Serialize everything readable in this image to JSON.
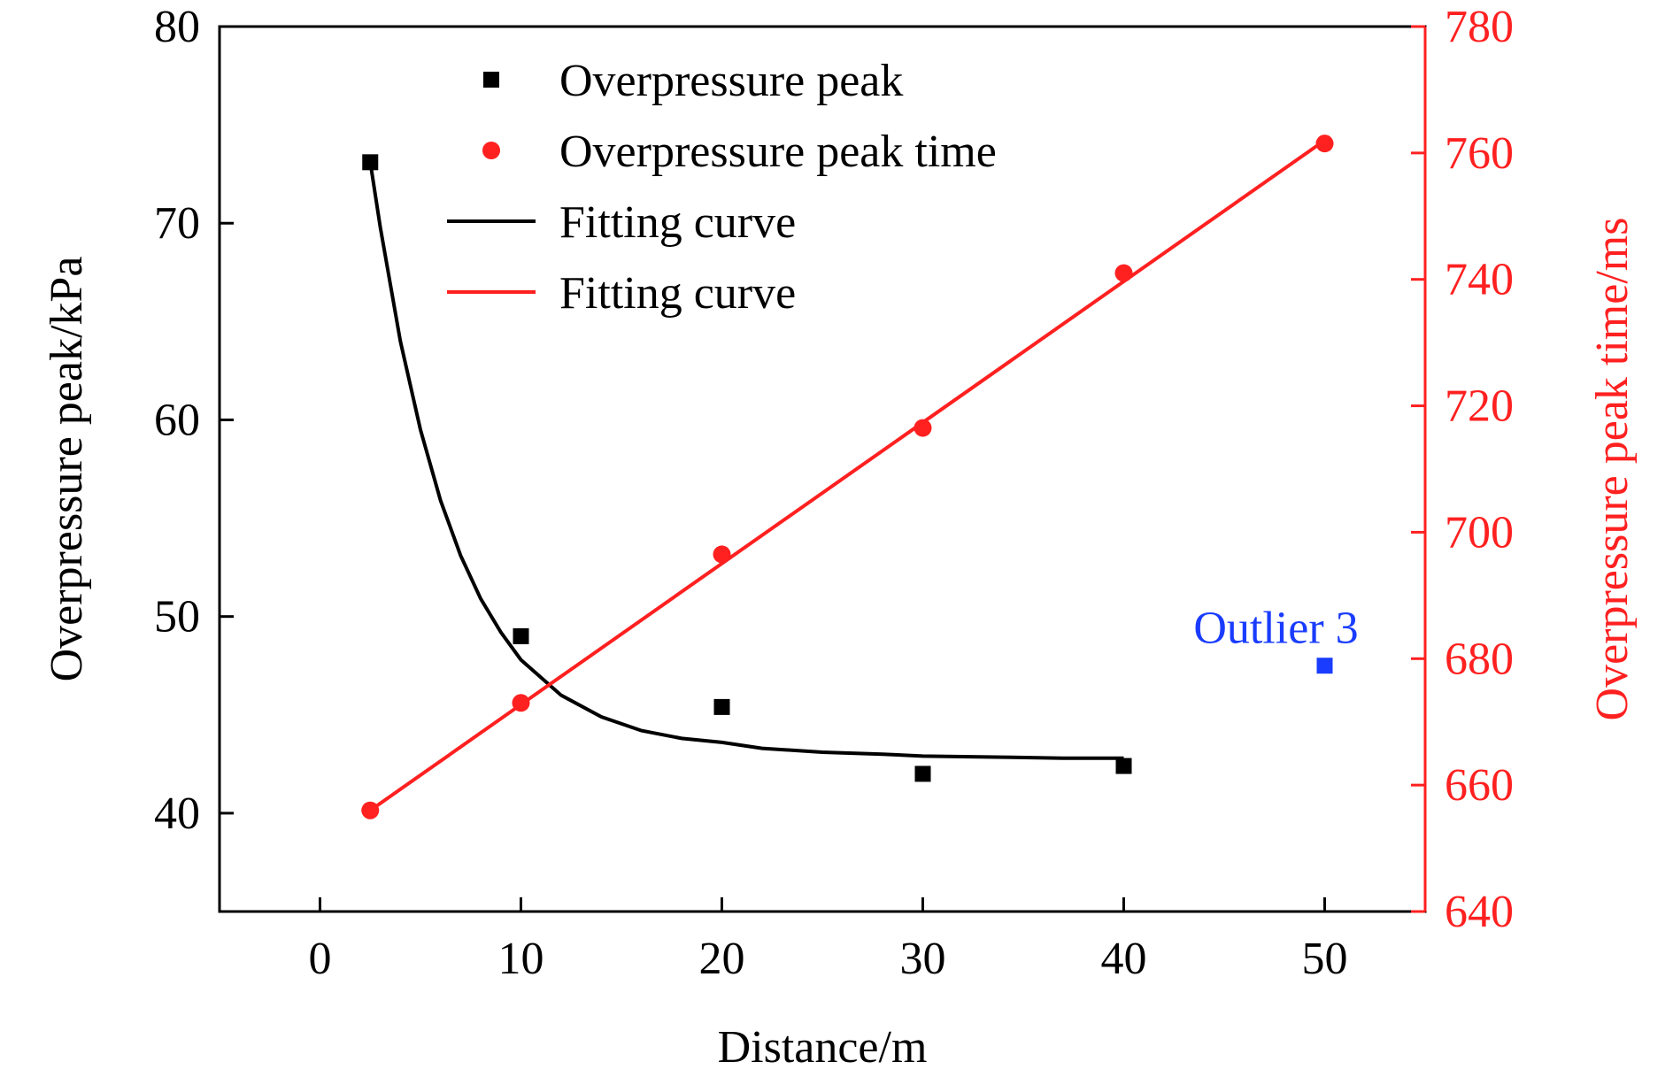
{
  "chart_data": {
    "type": "scatter",
    "xlabel": "Distance/m",
    "ylabel_left": "Overpressure peak/kPa",
    "ylabel_right": "Overpressure peak time/ms",
    "xlim": [
      -5,
      55
    ],
    "ylim_left": [
      35,
      80
    ],
    "ylim_right": [
      640,
      780
    ],
    "x_ticks": [
      0,
      10,
      20,
      30,
      40,
      50
    ],
    "y_ticks_left": [
      40,
      50,
      60,
      70,
      80
    ],
    "y_ticks_right": [
      640,
      660,
      680,
      700,
      720,
      740,
      760,
      780
    ],
    "legend_position": "top-left",
    "colors": {
      "left_axis": "#000000",
      "right_axis": "#ff2020",
      "peak": "#000000",
      "time": "#ff2020",
      "outlier": "#1a3cff"
    },
    "series": [
      {
        "name": "Overpressure peak",
        "axis": "left",
        "marker": "square",
        "color": "#000000",
        "x": [
          2.5,
          10,
          20,
          30,
          40
        ],
        "y": [
          73.1,
          49.0,
          45.4,
          42.0,
          42.4
        ]
      },
      {
        "name": "Overpressure peak time",
        "axis": "right",
        "marker": "circle",
        "color": "#ff2020",
        "x": [
          2.5,
          10,
          20,
          30,
          40,
          50
        ],
        "y": [
          656.0,
          673.0,
          696.5,
          716.5,
          741.0,
          761.5
        ]
      },
      {
        "name": "Fitting curve",
        "axis": "left",
        "style": "line",
        "color": "#000000",
        "x": [
          2.5,
          3,
          4,
          5,
          6,
          7,
          8,
          9,
          10,
          12,
          14,
          16,
          18,
          20,
          22,
          25,
          28,
          30,
          34,
          37,
          40
        ],
        "y": [
          73.1,
          69.8,
          64.0,
          59.5,
          55.9,
          53.1,
          50.9,
          49.2,
          47.8,
          46.0,
          44.9,
          44.2,
          43.8,
          43.6,
          43.3,
          43.1,
          43.0,
          42.9,
          42.85,
          42.8,
          42.8
        ]
      },
      {
        "name": "Fitting curve",
        "axis": "right",
        "style": "line",
        "color": "#ff2020",
        "x": [
          2.5,
          50
        ],
        "y": [
          656.0,
          762.0
        ]
      },
      {
        "name": "",
        "axis": "left",
        "marker": "square",
        "color": "#1a3cff",
        "x": [
          50
        ],
        "y": [
          47.5
        ]
      }
    ],
    "annotations": [
      {
        "text": "Outlier 3",
        "x": 50,
        "y": 50.0,
        "axis": "left",
        "color": "#1a3cff"
      }
    ]
  }
}
